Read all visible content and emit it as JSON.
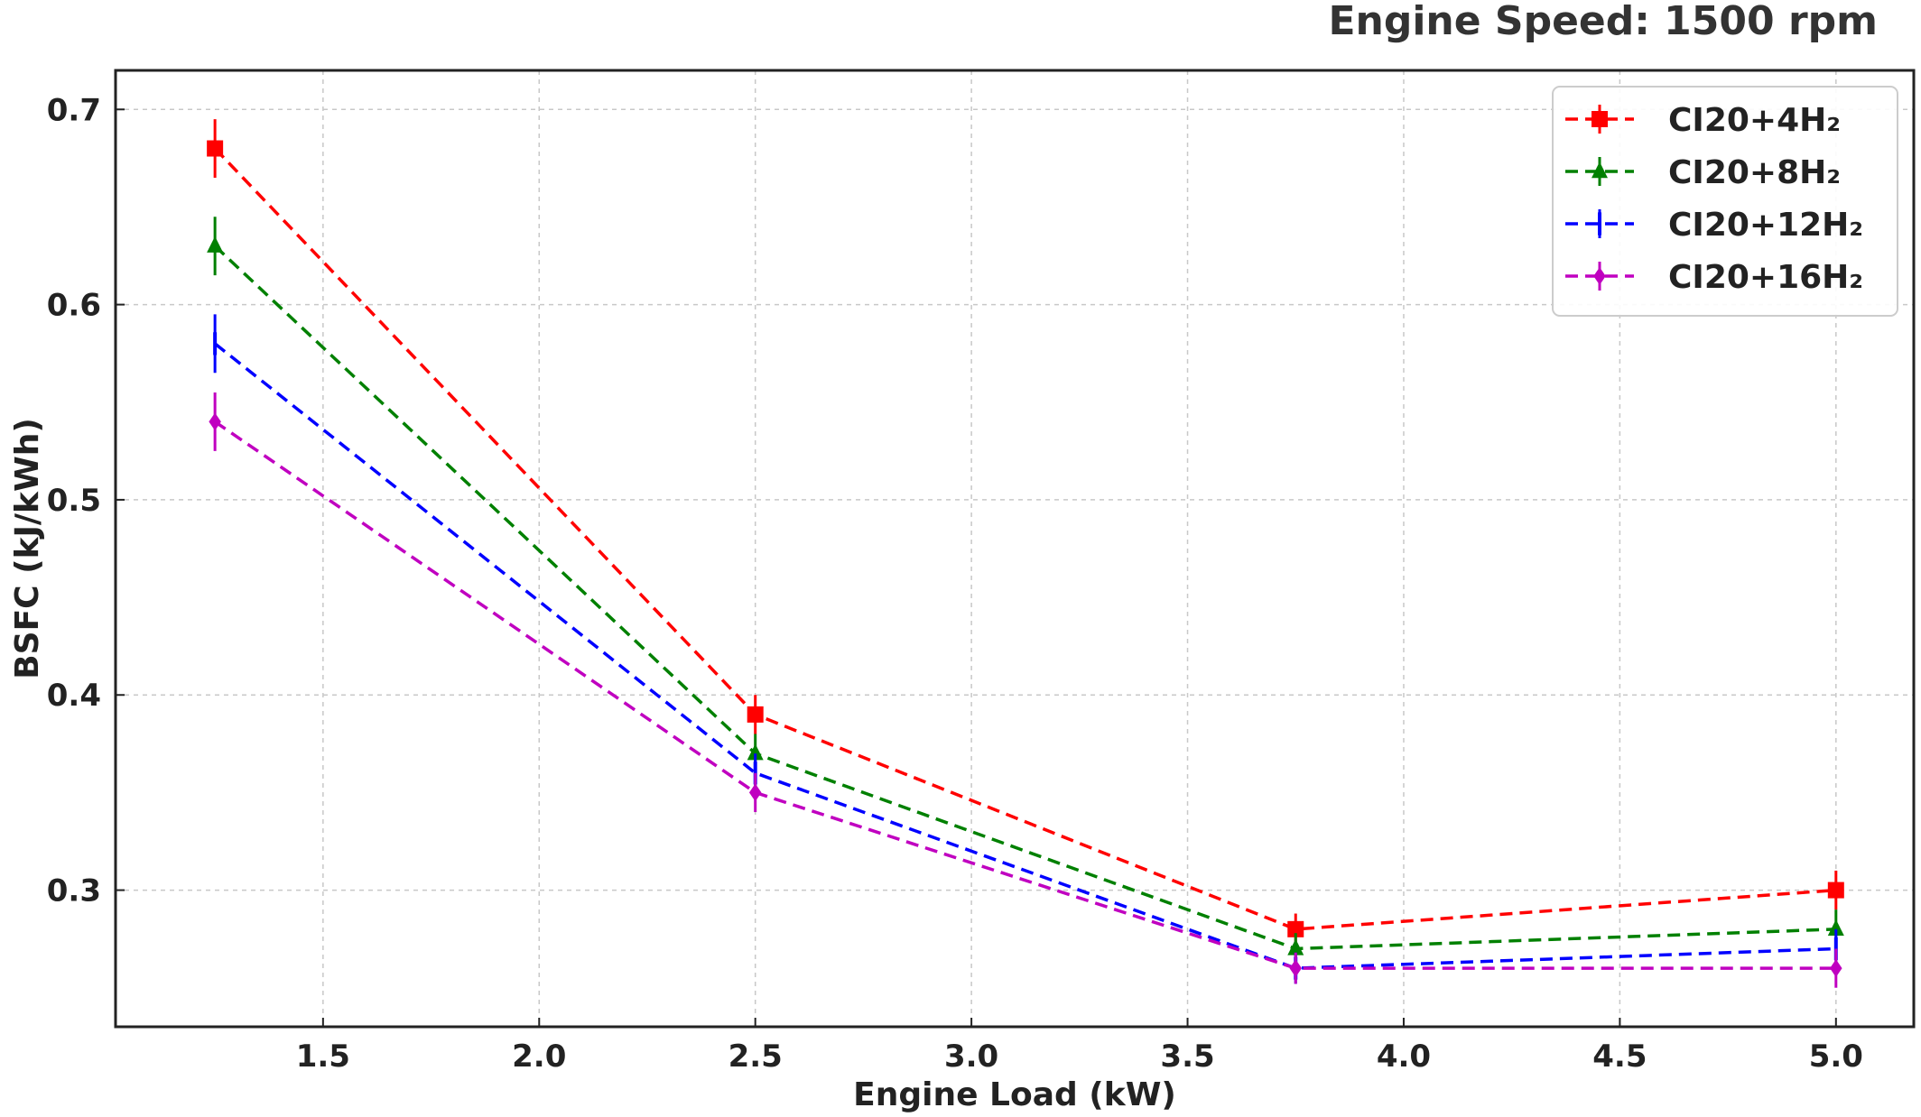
{
  "chart_data": {
    "type": "line",
    "title": "Engine Speed: 1500 rpm",
    "xlabel": "Engine Load (kW)",
    "ylabel": "BSFC (kJ/kWh)",
    "xlim": [
      1.02,
      5.18
    ],
    "ylim": [
      0.23,
      0.72
    ],
    "xticks": [
      1.5,
      2.0,
      2.5,
      3.0,
      3.5,
      4.0,
      4.5,
      5.0
    ],
    "xtick_labels": [
      "1.5",
      "2.0",
      "2.5",
      "3.0",
      "3.5",
      "4.0",
      "4.5",
      "5.0"
    ],
    "yticks": [
      0.3,
      0.4,
      0.5,
      0.6,
      0.7
    ],
    "ytick_labels": [
      "0.3",
      "0.4",
      "0.5",
      "0.6",
      "0.7"
    ],
    "grid": true,
    "legend_position": "top-right",
    "x": [
      1.25,
      2.5,
      3.75,
      5.0
    ],
    "series": [
      {
        "name": "CI20+4H₂",
        "color": "#ff0000",
        "marker": "square",
        "values": [
          0.68,
          0.39,
          0.28,
          0.3
        ],
        "errors": [
          0.015,
          0.01,
          0.008,
          0.01
        ]
      },
      {
        "name": "CI20+8H₂",
        "color": "#008000",
        "marker": "triangle",
        "values": [
          0.63,
          0.37,
          0.27,
          0.28
        ],
        "errors": [
          0.015,
          0.01,
          0.008,
          0.01
        ]
      },
      {
        "name": "CI20+12H₂",
        "color": "#0000ff",
        "marker": "vline",
        "values": [
          0.58,
          0.36,
          0.26,
          0.27
        ],
        "errors": [
          0.015,
          0.01,
          0.008,
          0.01
        ]
      },
      {
        "name": "CI20+16H₂",
        "color": "#c000c0",
        "marker": "diamond",
        "values": [
          0.54,
          0.35,
          0.26,
          0.26
        ],
        "errors": [
          0.015,
          0.01,
          0.008,
          0.01
        ]
      }
    ]
  }
}
